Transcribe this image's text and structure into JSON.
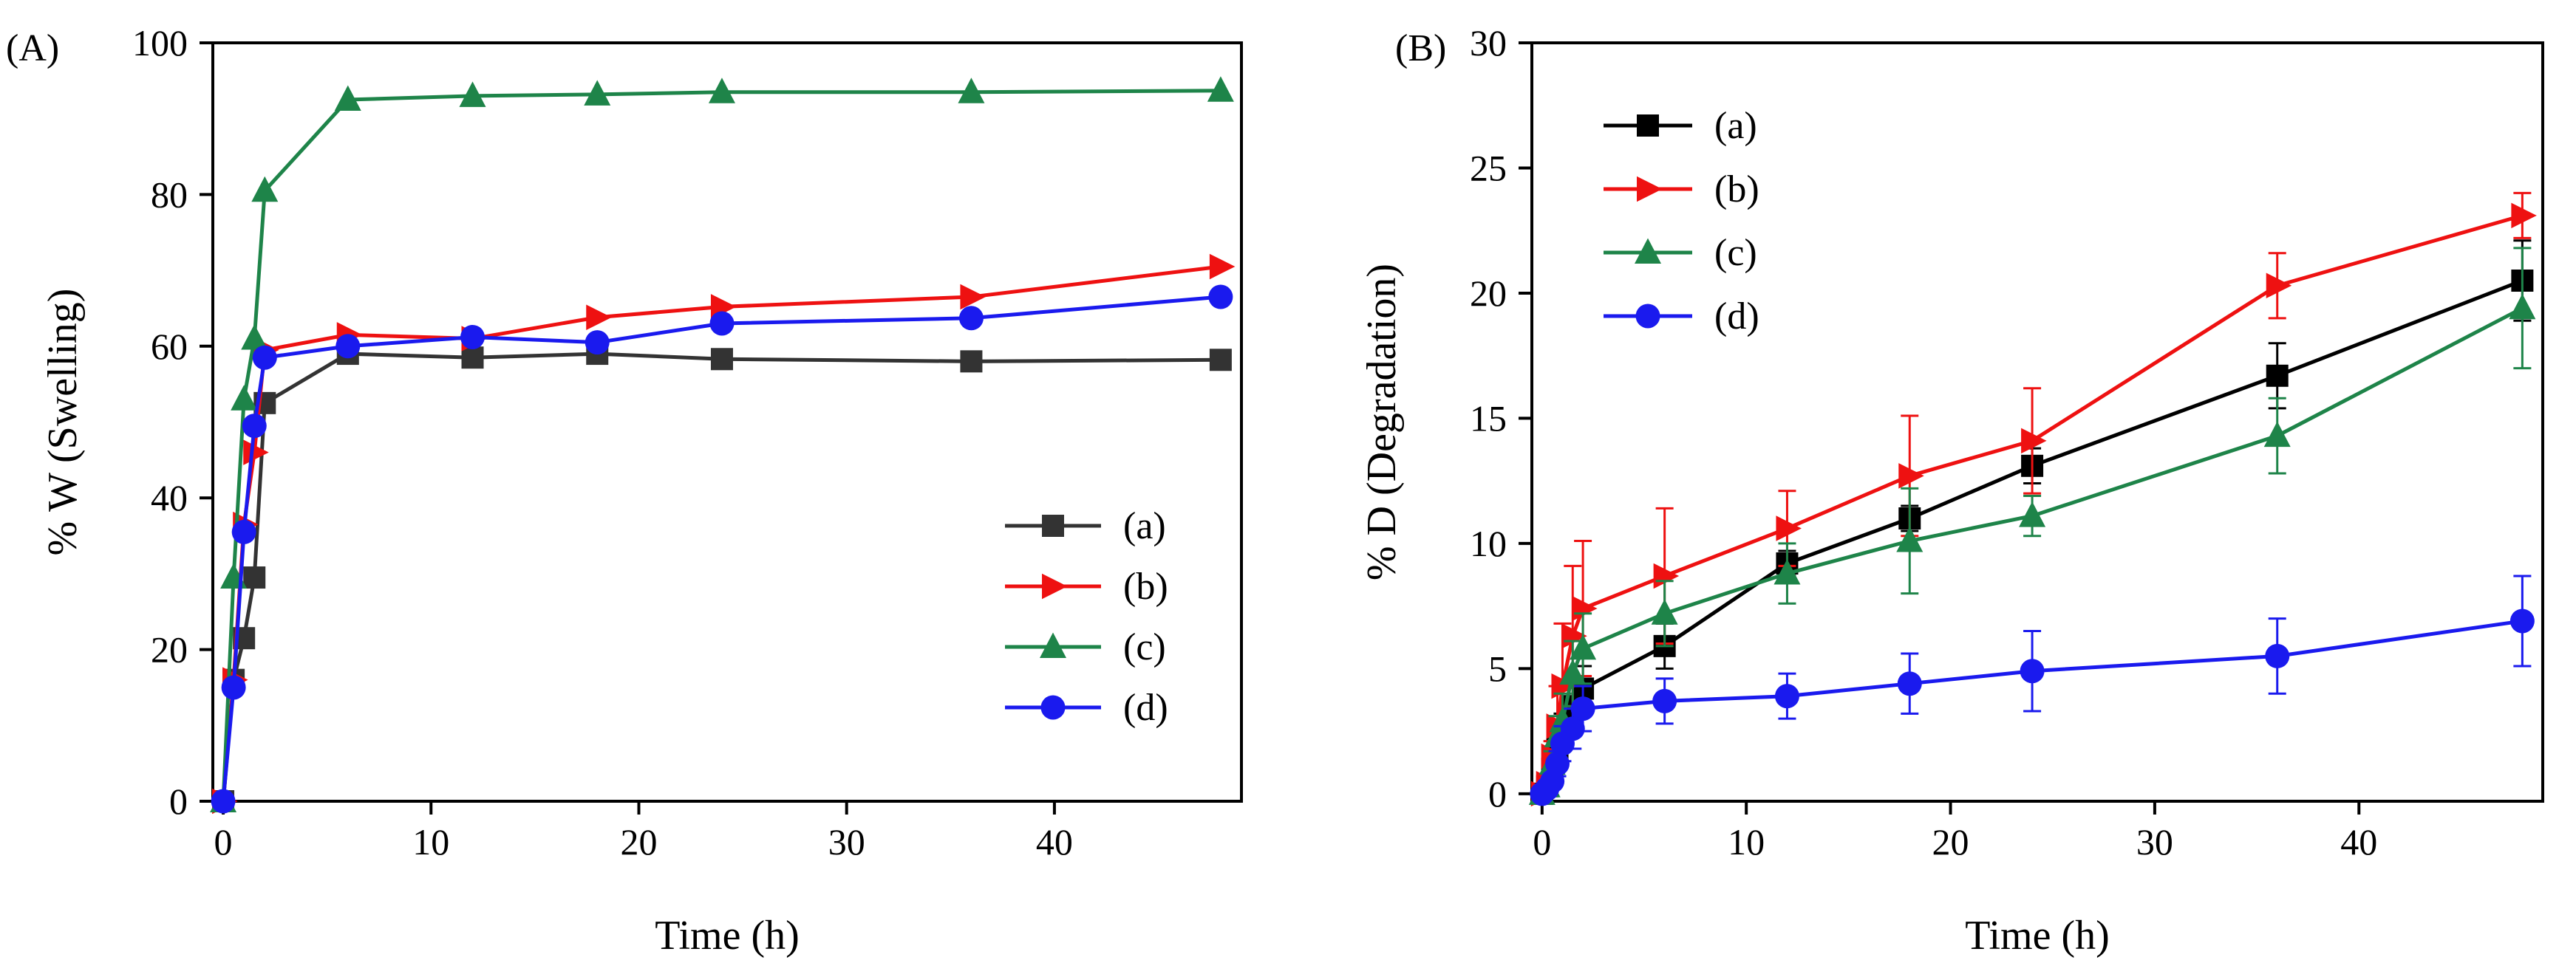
{
  "chart_data": [
    {
      "type": "line",
      "panel_label": "(A)",
      "title": "",
      "xlabel": "Time (h)",
      "ylabel": "% W (Swelling)",
      "xlim": [
        -0.5,
        49
      ],
      "ylim": [
        0,
        100
      ],
      "xticks": [
        0,
        10,
        20,
        30,
        40
      ],
      "yticks": [
        0,
        20,
        40,
        60,
        80,
        100
      ],
      "grid": false,
      "legend_position": "bottom-right",
      "x": [
        0,
        0.5,
        1,
        1.5,
        2,
        6,
        12,
        18,
        24,
        36,
        48
      ],
      "series": [
        {
          "name": "(a)",
          "color": "#333333",
          "marker": "square",
          "values": [
            0,
            16,
            21.5,
            29.5,
            52.5,
            59,
            58.5,
            59,
            58.3,
            58,
            58.2
          ]
        },
        {
          "name": "(b)",
          "color": "#ee1111",
          "marker": "triangle-right",
          "values": [
            0,
            16,
            36.5,
            46,
            59.5,
            61.5,
            61,
            63.8,
            65.2,
            66.5,
            70.5
          ]
        },
        {
          "name": "(c)",
          "color": "#1e8449",
          "marker": "triangle-up",
          "values": [
            0,
            29.5,
            53,
            61,
            80.5,
            92.5,
            93,
            93.2,
            93.5,
            93.5,
            93.7
          ]
        },
        {
          "name": "(d)",
          "color": "#1a1aee",
          "marker": "circle",
          "values": [
            0,
            15,
            35.5,
            49.5,
            58.5,
            60,
            61.2,
            60.5,
            63,
            63.7,
            66.5
          ]
        }
      ]
    },
    {
      "type": "line",
      "panel_label": "(B)",
      "title": "",
      "xlabel": "Time (h)",
      "ylabel": "% D (Degradation)",
      "xlim": [
        -0.5,
        49
      ],
      "ylim": [
        -0.3,
        30
      ],
      "xticks": [
        0,
        10,
        20,
        30,
        40
      ],
      "yticks": [
        0,
        5,
        10,
        15,
        20,
        25,
        30
      ],
      "grid": false,
      "legend_position": "top-left",
      "x": [
        0,
        0.25,
        0.5,
        0.75,
        1,
        1.5,
        2,
        6,
        12,
        18,
        24,
        36,
        48
      ],
      "series": [
        {
          "name": "(a)",
          "color": "#000000",
          "marker": "square",
          "values": [
            0,
            0.3,
            1.0,
            1.8,
            2.5,
            3.5,
            4.2,
            5.9,
            9.2,
            11.0,
            13.1,
            16.7,
            20.5
          ],
          "errors": [
            0,
            0.2,
            0.4,
            0.5,
            0.7,
            0.8,
            0.9,
            0.9,
            0.5,
            0.5,
            0.7,
            1.3,
            1.6
          ]
        },
        {
          "name": "(b)",
          "color": "#ee1111",
          "marker": "triangle-right",
          "values": [
            0,
            0.4,
            1.5,
            2.7,
            4.3,
            6.3,
            7.4,
            8.7,
            10.6,
            12.7,
            14.1,
            20.3,
            23.1
          ],
          "errors": [
            0,
            0.3,
            0.6,
            1.6,
            2.5,
            2.8,
            2.7,
            2.7,
            1.5,
            2.4,
            2.1,
            1.3,
            0.9
          ]
        },
        {
          "name": "(c)",
          "color": "#1e8449",
          "marker": "triangle-up",
          "values": [
            0,
            0.3,
            1.2,
            2.3,
            2.9,
            4.8,
            5.8,
            7.2,
            8.8,
            10.1,
            11.1,
            14.3,
            19.4
          ],
          "errors": [
            0,
            0.2,
            0.5,
            0.8,
            1.1,
            1.3,
            1.4,
            1.3,
            1.2,
            2.1,
            0.8,
            1.5,
            2.4
          ]
        },
        {
          "name": "(d)",
          "color": "#1a1aee",
          "marker": "circle",
          "values": [
            0,
            0.2,
            0.5,
            1.2,
            2.0,
            2.6,
            3.4,
            3.7,
            3.9,
            4.4,
            4.9,
            5.5,
            6.9
          ],
          "errors": [
            0,
            0.2,
            0.3,
            0.5,
            0.7,
            0.8,
            0.9,
            0.9,
            0.9,
            1.2,
            1.6,
            1.5,
            1.8
          ]
        }
      ]
    }
  ]
}
